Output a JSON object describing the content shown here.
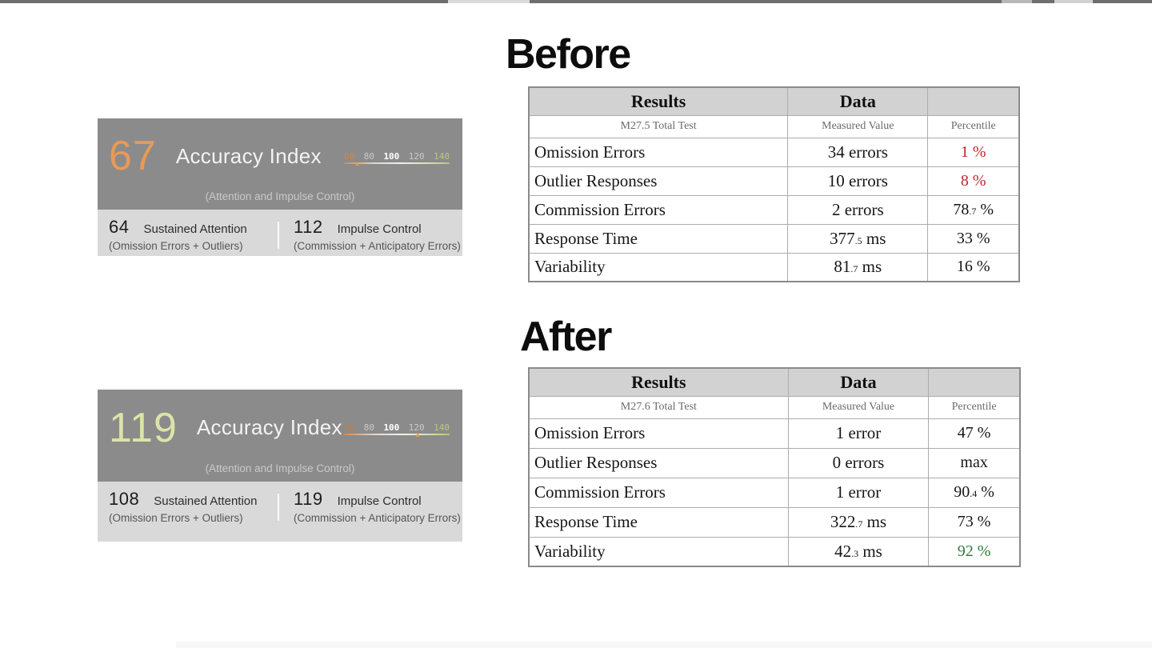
{
  "colors": {
    "accent_orange": "#e8944a",
    "score_before": "#e89a55",
    "score_after": "#dce3a8",
    "percentile_red": "#c1232f",
    "percentile_green": "#2e7d39",
    "percentile_default": "#161616"
  },
  "cards": {
    "before": {
      "score": "67",
      "score_color": "#e89a55",
      "title": "Accuracy Index",
      "subtitle": "(Attention and Impulse Control)",
      "scale": {
        "min": 60,
        "max": 140,
        "marker_value": 67,
        "ticks": [
          {
            "label": "60",
            "color": "#d0894e"
          },
          {
            "label": "80",
            "color": "#c9c9c9"
          },
          {
            "label": "100",
            "color": "#ffffff"
          },
          {
            "label": "120",
            "color": "#c9c9c9"
          },
          {
            "label": "140",
            "color": "#b9c87c"
          }
        ]
      },
      "sub_left": {
        "value": "64",
        "label": "Sustained Attention",
        "detail": "(Omission Errors + Outliers)"
      },
      "sub_right": {
        "value": "112",
        "label": "Impulse Control",
        "detail": "(Commission + Anticipatory Errors)"
      }
    },
    "after": {
      "score": "119",
      "score_color": "#dce3a8",
      "title": "Accuracy Index",
      "subtitle": "(Attention and Impulse Control)",
      "scale": {
        "min": 60,
        "max": 140,
        "marker_value": 119,
        "ticks": [
          {
            "label": "60",
            "color": "#c07f46"
          },
          {
            "label": "80",
            "color": "#c9c9c9"
          },
          {
            "label": "100",
            "color": "#ffffff"
          },
          {
            "label": "120",
            "color": "#c9c9c9"
          },
          {
            "label": "140",
            "color": "#b9c87c"
          }
        ]
      },
      "sub_left": {
        "value": "108",
        "label": "Sustained Attention",
        "detail": "(Omission Errors + Outliers)"
      },
      "sub_right": {
        "value": "119",
        "label": "Impulse Control",
        "detail": "(Commission + Anticipatory Errors)"
      }
    }
  },
  "tables": {
    "before": {
      "heading": "Before",
      "columns": [
        "Results",
        "Data",
        ""
      ],
      "subheader": [
        "M27.5 Total Test",
        "Measured Value",
        "Percentile"
      ],
      "rows": [
        {
          "label": "Omission Errors",
          "val": "34",
          "dec": "",
          "unit": " errors",
          "pct": "1",
          "pct_dec": "",
          "pct_unit": " %",
          "pct_color": "#c1232f"
        },
        {
          "label": "Outlier Responses",
          "val": "10",
          "dec": "",
          "unit": " errors",
          "pct": "8",
          "pct_dec": "",
          "pct_unit": " %",
          "pct_color": "#c1232f"
        },
        {
          "label": "Commission Errors",
          "val": "2",
          "dec": "",
          "unit": " errors",
          "pct": "78",
          "pct_dec": ".7",
          "pct_unit": " %",
          "pct_color": "#161616"
        },
        {
          "label": "Response Time",
          "val": "377",
          "dec": ".5",
          "unit": " ms",
          "pct": "33",
          "pct_dec": "",
          "pct_unit": " %",
          "pct_color": "#161616"
        },
        {
          "label": "Variability",
          "val": "81",
          "dec": ".7",
          "unit": " ms",
          "pct": "16",
          "pct_dec": "",
          "pct_unit": " %",
          "pct_color": "#161616"
        }
      ]
    },
    "after": {
      "heading": "After",
      "columns": [
        "Results",
        "Data",
        ""
      ],
      "subheader": [
        "M27.6 Total Test",
        "Measured Value",
        "Percentile"
      ],
      "rows": [
        {
          "label": "Omission Errors",
          "val": "1",
          "dec": "",
          "unit": " error",
          "pct": "47",
          "pct_dec": "",
          "pct_unit": " %",
          "pct_color": "#161616"
        },
        {
          "label": "Outlier Responses",
          "val": "0",
          "dec": "",
          "unit": " errors",
          "pct": "max",
          "pct_dec": "",
          "pct_unit": "",
          "pct_color": "#161616"
        },
        {
          "label": "Commission Errors",
          "val": "1",
          "dec": "",
          "unit": " error",
          "pct": "90",
          "pct_dec": ".4",
          "pct_unit": " %",
          "pct_color": "#161616"
        },
        {
          "label": "Response Time",
          "val": "322",
          "dec": ".7",
          "unit": " ms",
          "pct": "73",
          "pct_dec": "",
          "pct_unit": " %",
          "pct_color": "#161616"
        },
        {
          "label": "Variability",
          "val": "42",
          "dec": ".3",
          "unit": " ms",
          "pct": "92",
          "pct_dec": "",
          "pct_unit": " %",
          "pct_color": "#2e7d39"
        }
      ]
    }
  }
}
